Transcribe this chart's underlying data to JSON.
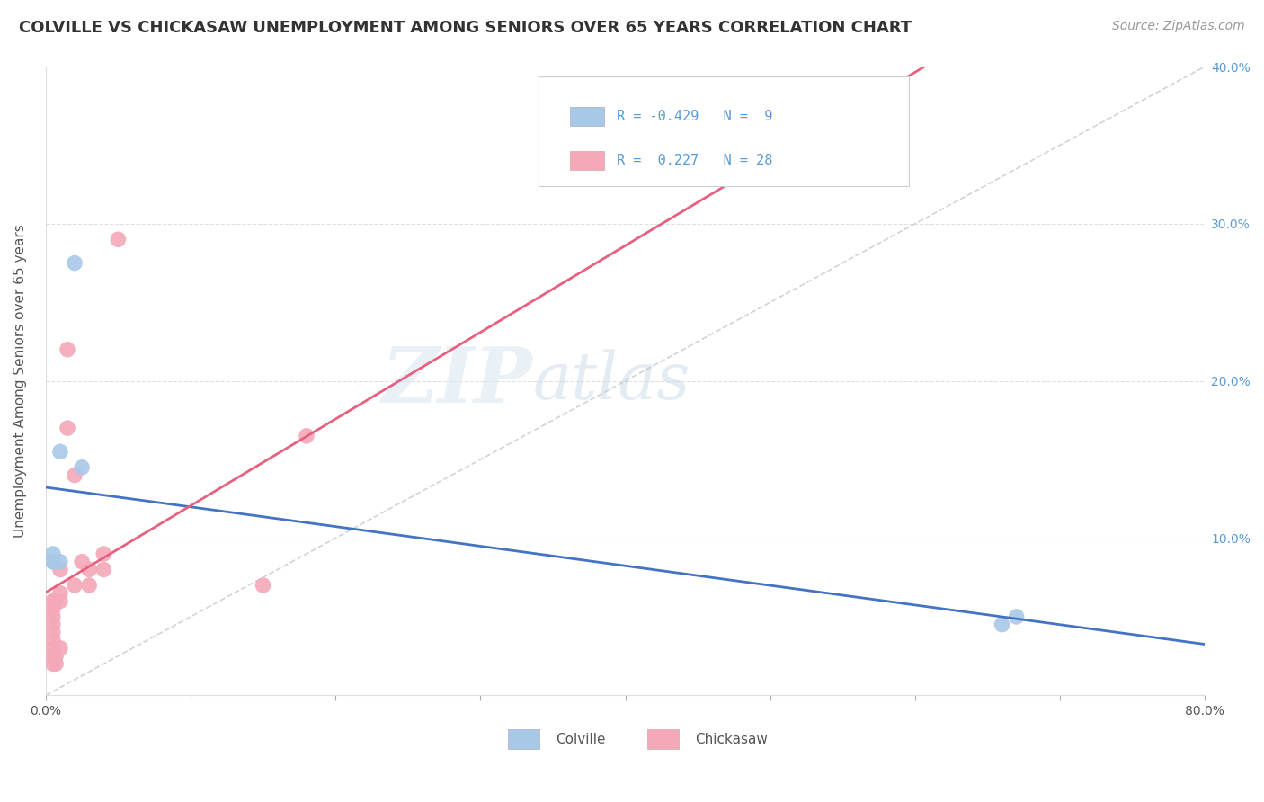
{
  "title": "COLVILLE VS CHICKASAW UNEMPLOYMENT AMONG SENIORS OVER 65 YEARS CORRELATION CHART",
  "source": "Source: ZipAtlas.com",
  "ylabel": "Unemployment Among Seniors over 65 years",
  "xlabel": "",
  "xlim": [
    0.0,
    0.8
  ],
  "ylim": [
    0.0,
    0.4
  ],
  "xticks": [
    0.0,
    0.1,
    0.2,
    0.3,
    0.4,
    0.5,
    0.6,
    0.7,
    0.8
  ],
  "xticklabels": [
    "0.0%",
    "",
    "",
    "",
    "",
    "",
    "",
    "",
    "80.0%"
  ],
  "yticks": [
    0.0,
    0.1,
    0.2,
    0.3,
    0.4
  ],
  "yticklabels_right": [
    "",
    "10.0%",
    "20.0%",
    "30.0%",
    "40.0%"
  ],
  "colville_x": [
    0.005,
    0.005,
    0.01,
    0.02,
    0.025,
    0.66,
    0.67,
    0.005,
    0.01
  ],
  "colville_y": [
    0.085,
    0.09,
    0.155,
    0.275,
    0.145,
    0.045,
    0.05,
    0.085,
    0.085
  ],
  "chickasaw_x": [
    0.005,
    0.005,
    0.005,
    0.005,
    0.005,
    0.005,
    0.005,
    0.005,
    0.005,
    0.007,
    0.007,
    0.007,
    0.01,
    0.01,
    0.01,
    0.01,
    0.015,
    0.015,
    0.02,
    0.02,
    0.025,
    0.03,
    0.03,
    0.04,
    0.04,
    0.05,
    0.15,
    0.18
  ],
  "chickasaw_y": [
    0.02,
    0.025,
    0.03,
    0.035,
    0.04,
    0.045,
    0.05,
    0.055,
    0.06,
    0.02,
    0.025,
    0.06,
    0.03,
    0.06,
    0.065,
    0.08,
    0.17,
    0.22,
    0.07,
    0.14,
    0.085,
    0.07,
    0.08,
    0.08,
    0.09,
    0.29,
    0.07,
    0.165
  ],
  "colville_color": "#A8C8E8",
  "chickasaw_color": "#F4A8B8",
  "colville_line_color": "#4472C4",
  "chickasaw_line_color": "#E86080",
  "trend_line_color": "#C8C8C8",
  "R_colville": -0.429,
  "N_colville": 9,
  "R_chickasaw": 0.227,
  "N_chickasaw": 28,
  "legend_label_colville": "Colville",
  "legend_label_chickasaw": "Chickasaw",
  "title_fontsize": 13,
  "axis_label_fontsize": 11,
  "tick_fontsize": 10,
  "legend_fontsize": 12,
  "source_fontsize": 10,
  "watermark_zip": "ZIP",
  "watermark_atlas": "atlas",
  "background_color": "#FFFFFF",
  "grid_color": "#E0E0E0"
}
